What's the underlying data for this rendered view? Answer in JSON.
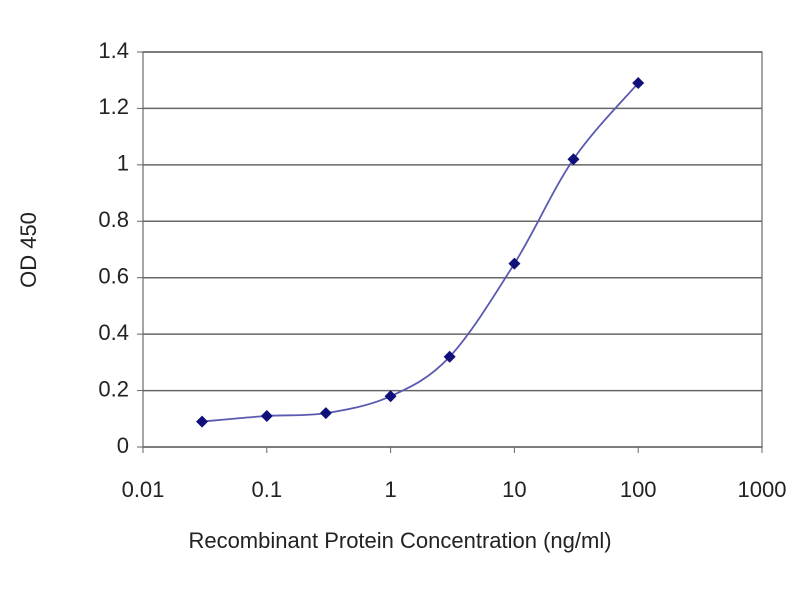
{
  "chart_data": {
    "type": "line",
    "x_label": "Recombinant Protein Concentration (ng/ml)",
    "y_label": "OD 450",
    "x": [
      0.03,
      0.1,
      0.3,
      1,
      3,
      10,
      30,
      100
    ],
    "series": [
      {
        "values": [
          0.09,
          0.11,
          0.12,
          0.18,
          0.32,
          0.65,
          1.02,
          1.29
        ],
        "color": "#10107a",
        "line_color": "#5a5ab0"
      }
    ],
    "x_scale": "log",
    "xlim": [
      0.01,
      1000
    ],
    "xticks": [
      0.01,
      0.1,
      1,
      10,
      100,
      1000
    ],
    "ylim": [
      0,
      1.4
    ],
    "yticks": [
      0,
      0.2,
      0.4,
      0.6,
      0.8,
      1,
      1.2,
      1.4
    ],
    "grid": true
  }
}
